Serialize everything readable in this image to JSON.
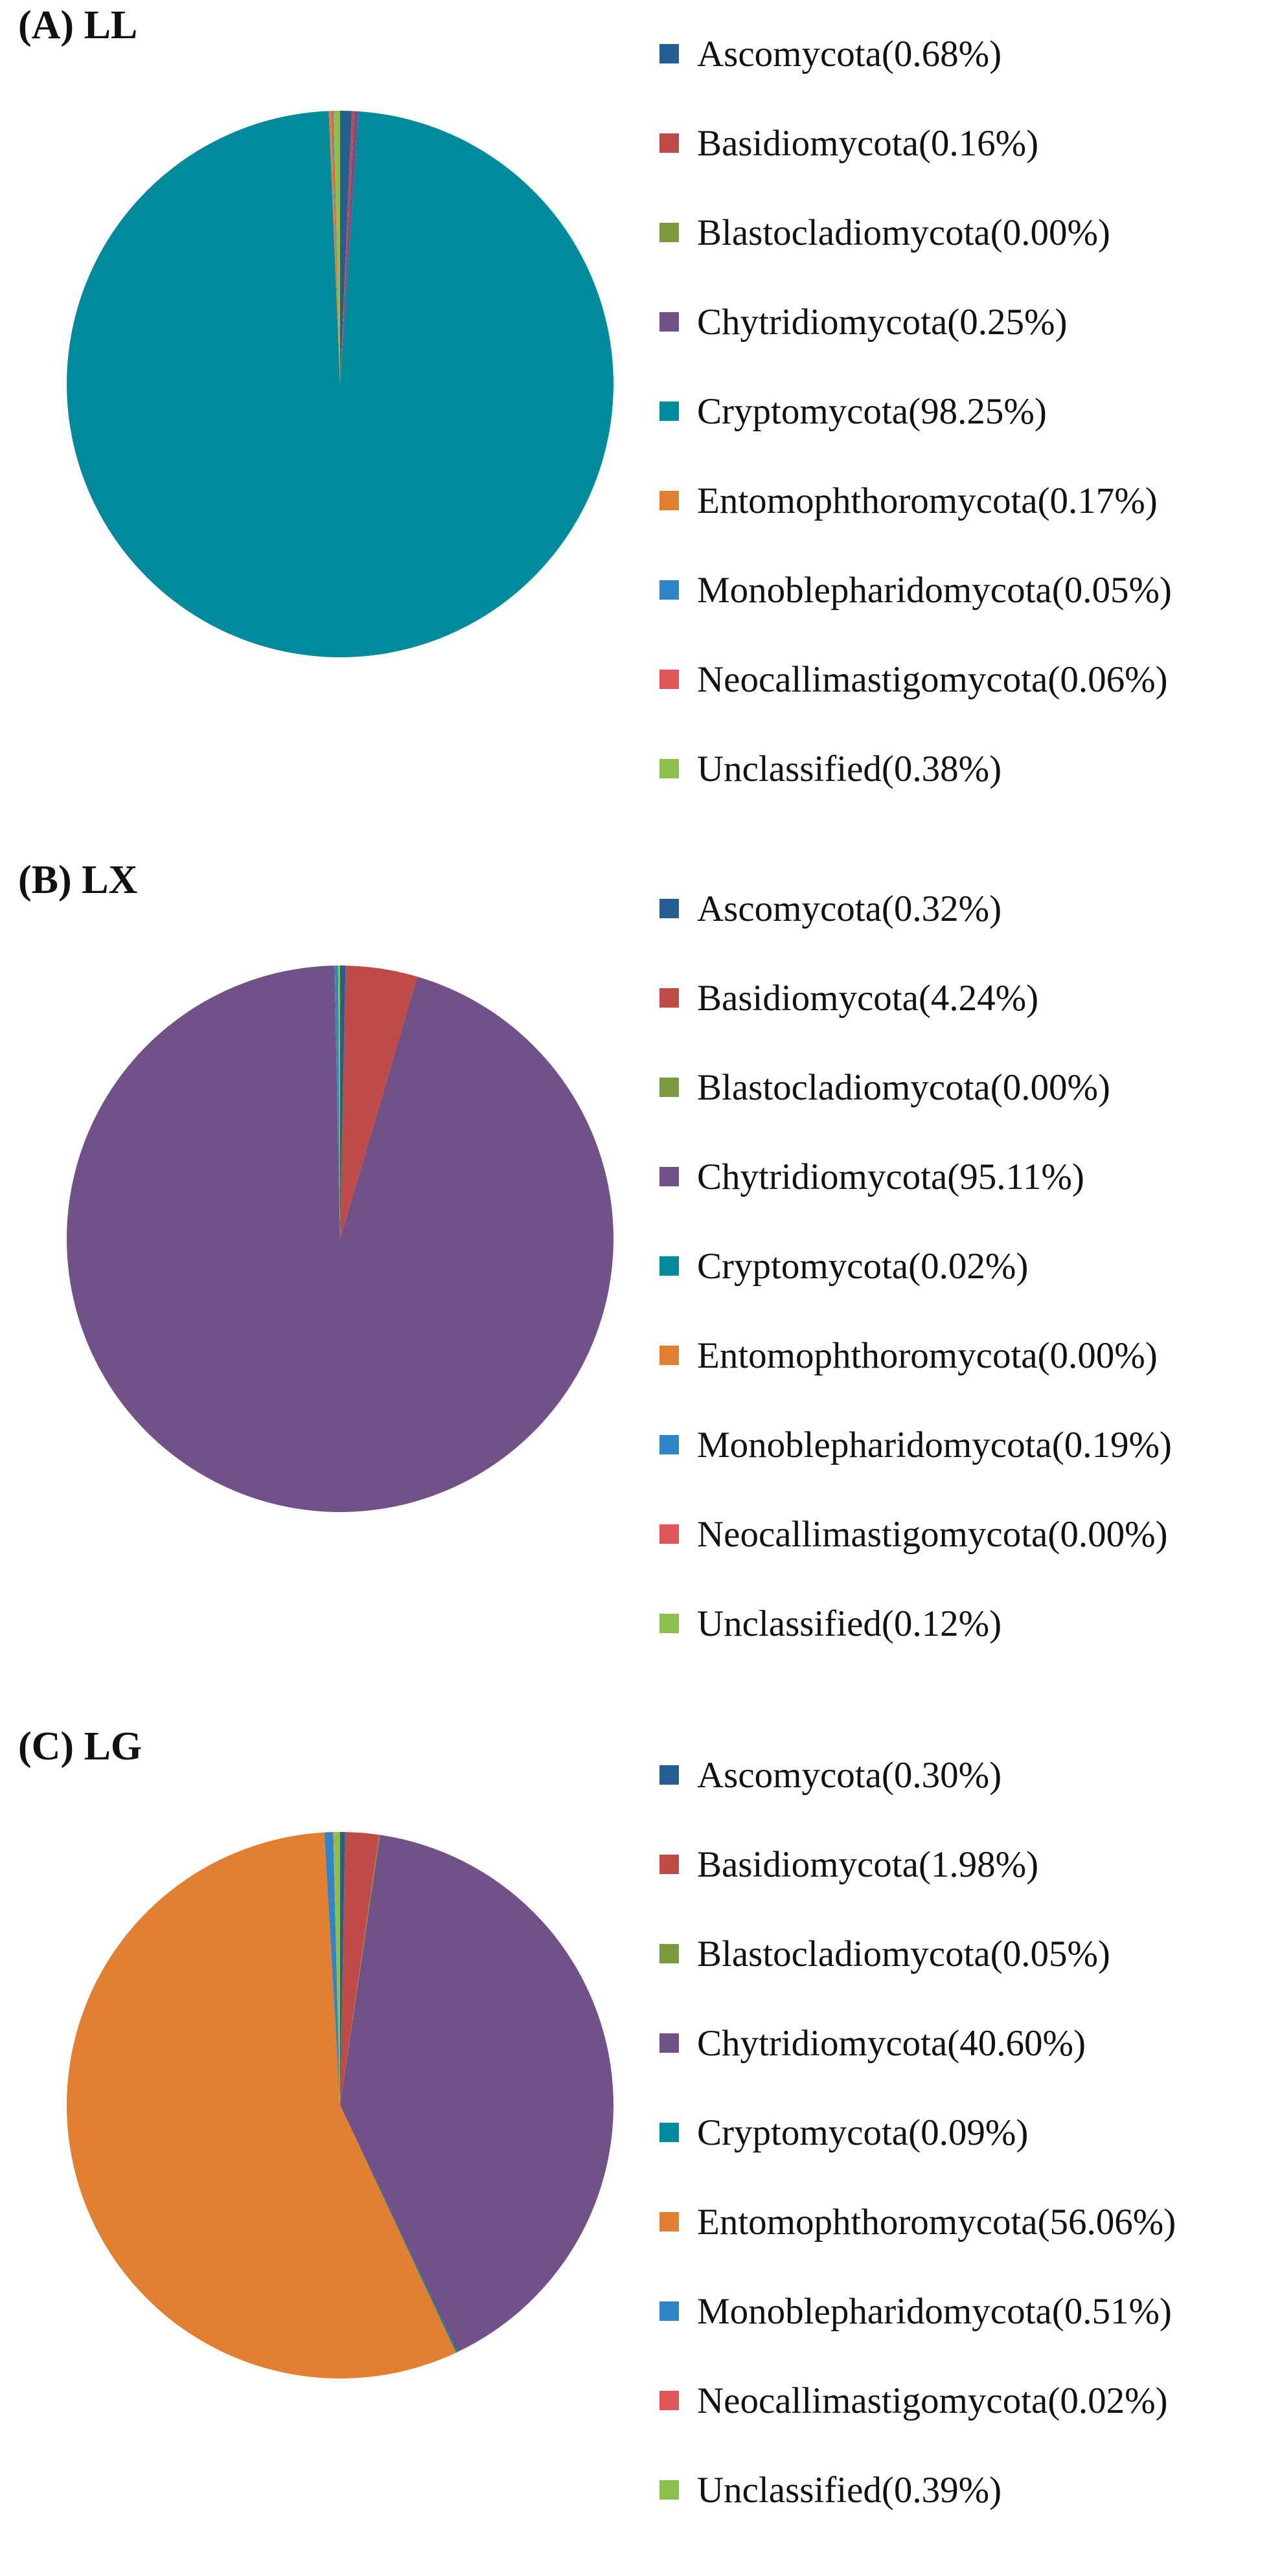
{
  "chart_data": [
    {
      "type": "pie",
      "title": "(A) LL",
      "legend_position": "right",
      "series": [
        {
          "label": "Ascomycota(0.68%)",
          "category": "Ascomycota",
          "value": 0.68,
          "color": "#255E91"
        },
        {
          "label": "Basidiomycota(0.16%)",
          "category": "Basidiomycota",
          "value": 0.16,
          "color": "#BE4B48"
        },
        {
          "label": "Blastocladiomycota(0.00%)",
          "category": "Blastocladiomycota",
          "value": 0.0,
          "color": "#7A9A3D"
        },
        {
          "label": "Chytridiomycota(0.25%)",
          "category": "Chytridiomycota",
          "value": 0.25,
          "color": "#715187"
        },
        {
          "label": "Cryptomycota(98.25%)",
          "category": "Cryptomycota",
          "value": 98.25,
          "color": "#008B9D"
        },
        {
          "label": "Entomophthoromycota(0.17%)",
          "category": "Entomophthoromycota",
          "value": 0.17,
          "color": "#E27F30"
        },
        {
          "label": "Monoblepharidomycota(0.05%)",
          "category": "Monoblepharidomycota",
          "value": 0.05,
          "color": "#2E86C8"
        },
        {
          "label": "Neocallimastigomycota(0.06%)",
          "category": "Neocallimastigomycota",
          "value": 0.06,
          "color": "#E15759"
        },
        {
          "label": "Unclassified(0.38%)",
          "category": "Unclassified",
          "value": 0.38,
          "color": "#8CBF4D"
        }
      ]
    },
    {
      "type": "pie",
      "title": "(B) LX",
      "legend_position": "right",
      "series": [
        {
          "label": "Ascomycota(0.32%)",
          "category": "Ascomycota",
          "value": 0.32,
          "color": "#255E91"
        },
        {
          "label": "Basidiomycota(4.24%)",
          "category": "Basidiomycota",
          "value": 4.24,
          "color": "#BE4B48"
        },
        {
          "label": "Blastocladiomycota(0.00%)",
          "category": "Blastocladiomycota",
          "value": 0.0,
          "color": "#7A9A3D"
        },
        {
          "label": "Chytridiomycota(95.11%)",
          "category": "Chytridiomycota",
          "value": 95.11,
          "color": "#715187"
        },
        {
          "label": "Cryptomycota(0.02%)",
          "category": "Cryptomycota",
          "value": 0.02,
          "color": "#008B9D"
        },
        {
          "label": "Entomophthoromycota(0.00%)",
          "category": "Entomophthoromycota",
          "value": 0.0,
          "color": "#E27F30"
        },
        {
          "label": "Monoblepharidomycota(0.19%)",
          "category": "Monoblepharidomycota",
          "value": 0.19,
          "color": "#2E86C8"
        },
        {
          "label": "Neocallimastigomycota(0.00%)",
          "category": "Neocallimastigomycota",
          "value": 0.0,
          "color": "#E15759"
        },
        {
          "label": "Unclassified(0.12%)",
          "category": "Unclassified",
          "value": 0.12,
          "color": "#8CBF4D"
        }
      ]
    },
    {
      "type": "pie",
      "title": "(C) LG",
      "legend_position": "right",
      "series": [
        {
          "label": "Ascomycota(0.30%)",
          "category": "Ascomycota",
          "value": 0.3,
          "color": "#255E91"
        },
        {
          "label": "Basidiomycota(1.98%)",
          "category": "Basidiomycota",
          "value": 1.98,
          "color": "#BE4B48"
        },
        {
          "label": "Blastocladiomycota(0.05%)",
          "category": "Blastocladiomycota",
          "value": 0.05,
          "color": "#7A9A3D"
        },
        {
          "label": "Chytridiomycota(40.60%)",
          "category": "Chytridiomycota",
          "value": 40.6,
          "color": "#715187"
        },
        {
          "label": "Cryptomycota(0.09%)",
          "category": "Cryptomycota",
          "value": 0.09,
          "color": "#008B9D"
        },
        {
          "label": "Entomophthoromycota(56.06%)",
          "category": "Entomophthoromycota",
          "value": 56.06,
          "color": "#E27F30"
        },
        {
          "label": "Monoblepharidomycota(0.51%)",
          "category": "Monoblepharidomycota",
          "value": 0.51,
          "color": "#2E86C8"
        },
        {
          "label": "Neocallimastigomycota(0.02%)",
          "category": "Neocallimastigomycota",
          "value": 0.02,
          "color": "#E15759"
        },
        {
          "label": "Unclassified(0.39%)",
          "category": "Unclassified",
          "value": 0.39,
          "color": "#8CBF4D"
        }
      ]
    }
  ]
}
